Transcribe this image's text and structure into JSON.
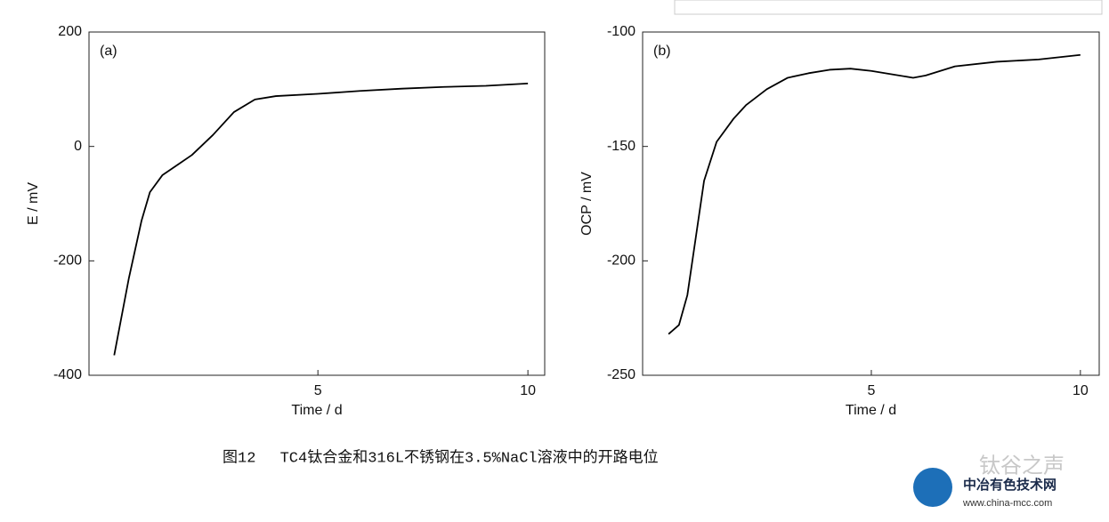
{
  "chart_data": [
    {
      "type": "line",
      "panel_label": "(a)",
      "x_label": "Time / d",
      "y_label": "E / mV",
      "x": [
        0.15,
        0.5,
        0.8,
        1.0,
        1.3,
        1.7,
        2.0,
        2.5,
        3.0,
        3.5,
        4,
        5,
        6,
        7,
        8,
        9,
        10
      ],
      "series": [
        {
          "color": "#000000",
          "values": [
            -365,
            -230,
            -130,
            -80,
            -50,
            -30,
            -15,
            20,
            60,
            82,
            88,
            92,
            97,
            101,
            104,
            106,
            110
          ]
        }
      ],
      "xlim": [
        -0.45,
        10.4
      ],
      "xticks": [
        5,
        10
      ],
      "ylim": [
        -400,
        200
      ],
      "yticks": [
        -400,
        -200,
        0,
        200
      ]
    },
    {
      "type": "line",
      "panel_label": "(b)",
      "x_label": "Time / d",
      "y_label": "OCP / mV",
      "x": [
        0.15,
        0.4,
        0.6,
        0.8,
        1.0,
        1.3,
        1.7,
        2.0,
        2.5,
        3,
        3.5,
        4,
        4.5,
        5,
        5.5,
        6,
        6.3,
        7,
        8,
        9,
        10
      ],
      "series": [
        {
          "color": "#000000",
          "values": [
            -232,
            -228,
            -215,
            -190,
            -165,
            -148,
            -138,
            -132,
            -125,
            -120,
            -118,
            -116.5,
            -116,
            -117,
            -118.5,
            -120,
            -119,
            -115,
            -113,
            -112,
            -110
          ]
        }
      ],
      "xlim": [
        -0.47,
        10.45
      ],
      "xticks": [
        5,
        10
      ],
      "ylim": [
        -250,
        -100
      ],
      "yticks": [
        -250,
        -200,
        -150,
        -100
      ]
    }
  ],
  "caption": "图12　 TC4钛合金和316L不锈钢在3.5%NaCl溶液中的开路电位",
  "watermark": {
    "account": "钛谷之声",
    "site_name": "中冶有色技术网",
    "url": "www.china-mcc.com"
  }
}
